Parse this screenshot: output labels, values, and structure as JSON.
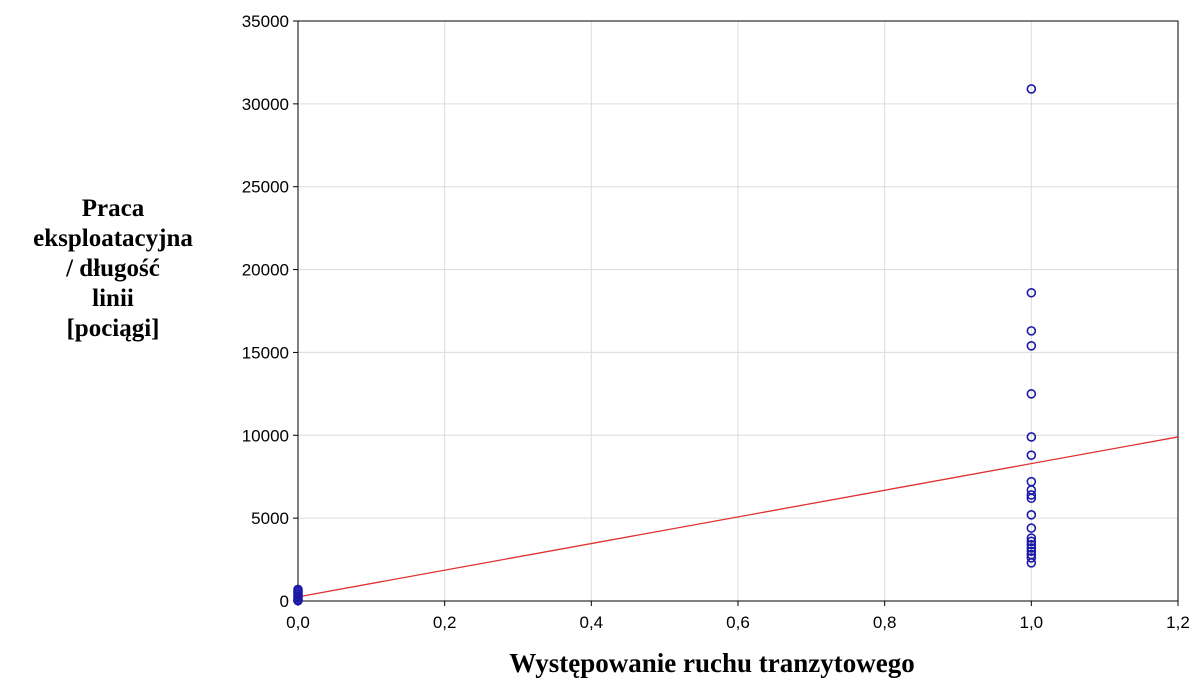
{
  "chart_data": {
    "type": "scatter",
    "title": "",
    "xlabel": "Występowanie ruchu tranzytowego",
    "ylabel_lines": [
      "Praca",
      "eksploatacyjna",
      "/ długość",
      "linii",
      "[pociągi]"
    ],
    "xlim": [
      0,
      1.2
    ],
    "ylim": [
      0,
      35000
    ],
    "x_ticks": [
      0,
      0.2,
      0.4,
      0.6,
      0.8,
      1.0,
      1.2
    ],
    "x_tick_labels": [
      "0,0",
      "0,2",
      "0,4",
      "0,6",
      "0,8",
      "1,0",
      "1,2"
    ],
    "y_ticks": [
      0,
      5000,
      10000,
      15000,
      20000,
      25000,
      30000,
      35000
    ],
    "y_tick_labels": [
      "0",
      "5000",
      "10000",
      "15000",
      "20000",
      "25000",
      "30000",
      "35000"
    ],
    "grid": true,
    "series": [
      {
        "x": [
          0,
          0,
          0,
          0,
          0,
          0,
          0,
          0,
          1,
          1,
          1,
          1,
          1,
          1,
          1,
          1,
          1,
          1,
          1,
          1,
          1,
          1,
          1,
          1,
          1,
          1,
          1,
          1,
          1
        ],
        "y": [
          20,
          100,
          200,
          300,
          400,
          500,
          600,
          700,
          30900,
          18600,
          16300,
          15400,
          12500,
          9900,
          8800,
          7200,
          6700,
          6400,
          6200,
          5200,
          4400,
          3800,
          3600,
          3400,
          3200,
          3000,
          2800,
          2600,
          2300
        ],
        "marker": "open-circle",
        "color": "#1a1aa6"
      }
    ],
    "regression_line": {
      "x": [
        0,
        1.2
      ],
      "y": [
        250,
        9900
      ],
      "color": "#e03030"
    }
  }
}
